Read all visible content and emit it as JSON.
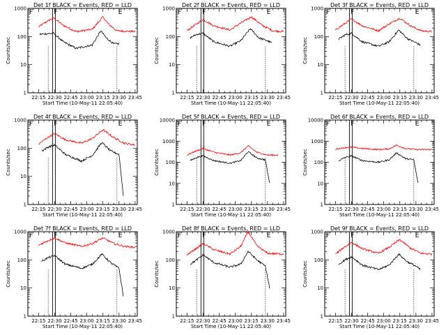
{
  "chart_data": [
    {
      "type": "line",
      "title": "Det 1f BLACK = Events, RED = LLD",
      "xlabel": "Start Time (10-May-11 22:05:40)",
      "ylabel": "Counts/sec",
      "ylim": [
        1,
        1000
      ],
      "yscale": "log",
      "x_ticks": [
        "22:15",
        "22:30",
        "22:45",
        "23:00",
        "23:15",
        "23:30",
        "23:45"
      ],
      "y_ticks": [
        "1",
        "10",
        "100",
        "1000"
      ],
      "markers": [
        "F",
        "E"
      ],
      "series": [
        {
          "color": "#ff0000",
          "x": [
            "22:15",
            "22:22",
            "22:29",
            "22:38",
            "22:50",
            "23:05",
            "23:15",
            "23:20",
            "23:28",
            "23:45"
          ],
          "y": [
            220,
            330,
            460,
            250,
            150,
            180,
            500,
            280,
            160,
            150
          ]
        },
        {
          "color": "#000000",
          "x": [
            "22:16",
            "22:22",
            "22:29",
            "22:38",
            "22:50",
            "23:05",
            "23:13",
            "23:18",
            "23:25",
            "23:30"
          ],
          "y": [
            120,
            125,
            130,
            65,
            38,
            50,
            160,
            90,
            55,
            55
          ]
        }
      ]
    },
    {
      "type": "line",
      "title": "Det 2f BLACK = Events, RED = LLD",
      "xlabel": "Start Time (10-May-11 22:05:40)",
      "ylabel": "Counts/sec",
      "ylim": [
        1,
        1000
      ],
      "yscale": "log",
      "x_ticks": [
        "22:15",
        "22:30",
        "22:45",
        "23:00",
        "23:15",
        "23:30",
        "23:45"
      ],
      "y_ticks": [
        "1",
        "10",
        "100",
        "1000"
      ],
      "markers": [
        "F",
        "E"
      ],
      "series": [
        {
          "color": "#ff0000",
          "x": [
            "22:15",
            "22:22",
            "22:30",
            "22:40",
            "22:55",
            "23:05",
            "23:15",
            "23:25",
            "23:35",
            "23:45"
          ],
          "y": [
            160,
            250,
            400,
            240,
            170,
            300,
            500,
            250,
            160,
            150
          ]
        },
        {
          "color": "#000000",
          "x": [
            "22:18",
            "22:24",
            "22:30",
            "22:40",
            "22:55",
            "23:05",
            "23:14",
            "23:22",
            "23:30",
            "23:34"
          ],
          "y": [
            90,
            120,
            130,
            65,
            45,
            70,
            190,
            90,
            70,
            60
          ]
        }
      ]
    },
    {
      "type": "line",
      "title": "Det 3f BLACK = Events, RED = LLD",
      "xlabel": "Start Time (10-May-11 22:05:40)",
      "ylabel": "Counts/sec",
      "ylim": [
        1,
        1000
      ],
      "yscale": "log",
      "x_ticks": [
        "22:15",
        "22:30",
        "22:45",
        "23:00",
        "23:15",
        "23:30",
        "23:45"
      ],
      "y_ticks": [
        "1",
        "10",
        "100",
        "1000"
      ],
      "markers": [
        "F",
        "E"
      ],
      "series": [
        {
          "color": "#ff0000",
          "x": [
            "22:15",
            "22:22",
            "22:30",
            "22:40",
            "22:55",
            "23:05",
            "23:15",
            "23:25",
            "23:35",
            "23:45"
          ],
          "y": [
            170,
            260,
            420,
            240,
            160,
            280,
            450,
            240,
            160,
            150
          ]
        },
        {
          "color": "#000000",
          "x": [
            "22:18",
            "22:24",
            "22:30",
            "22:40",
            "22:55",
            "23:05",
            "23:14",
            "23:22",
            "23:30",
            "23:34"
          ],
          "y": [
            80,
            115,
            130,
            65,
            45,
            65,
            170,
            85,
            60,
            50
          ]
        }
      ]
    },
    {
      "type": "line",
      "title": "Det 4f BLACK = Events, RED = LLD",
      "xlabel": "Start Time (10-May-11 22:05:40)",
      "ylabel": "Counts/sec",
      "ylim": [
        1,
        1000
      ],
      "yscale": "log",
      "x_ticks": [
        "22:15",
        "22:30",
        "22:45",
        "23:00",
        "23:15",
        "23:30",
        "23:45"
      ],
      "y_ticks": [
        "1",
        "10",
        "100",
        "1000"
      ],
      "markers": [
        "F",
        "E"
      ],
      "series": [
        {
          "color": "#ff0000",
          "x": [
            "22:15",
            "22:22",
            "22:30",
            "22:40",
            "22:55",
            "23:05",
            "23:15",
            "23:25",
            "23:35",
            "23:45"
          ],
          "y": [
            140,
            220,
            330,
            200,
            150,
            220,
            450,
            240,
            150,
            130
          ]
        },
        {
          "color": "#000000",
          "x": [
            "22:18",
            "22:24",
            "22:30",
            "22:40",
            "22:55",
            "23:05",
            "23:14",
            "23:22",
            "23:30",
            "23:34"
          ],
          "y": [
            80,
            110,
            130,
            60,
            35,
            55,
            160,
            80,
            60,
            2
          ]
        }
      ]
    },
    {
      "type": "line",
      "title": "Det 5f BLACK = Events, RED = LLD",
      "xlabel": "Start Time (10-May-11 22:05:40)",
      "ylabel": "Counts/sec",
      "ylim": [
        1,
        10000
      ],
      "yscale": "log",
      "x_ticks": [
        "22:15",
        "22:30",
        "22:45",
        "23:00",
        "23:15",
        "23:30",
        "23:45"
      ],
      "y_ticks": [
        "1",
        "10",
        "100",
        "1000",
        "10000"
      ],
      "markers": [
        "F",
        "E"
      ],
      "series": [
        {
          "color": "#ff0000",
          "x": [
            "22:15",
            "22:22",
            "22:30",
            "22:40",
            "22:55",
            "23:05",
            "23:12",
            "23:20",
            "23:30",
            "23:40"
          ],
          "y": [
            220,
            320,
            450,
            300,
            220,
            280,
            600,
            300,
            220,
            220
          ]
        },
        {
          "color": "#000000",
          "x": [
            "22:18",
            "22:24",
            "22:30",
            "22:40",
            "22:55",
            "23:05",
            "23:12",
            "23:20",
            "23:28",
            "23:32"
          ],
          "y": [
            120,
            170,
            200,
            120,
            90,
            120,
            320,
            160,
            130,
            10
          ]
        }
      ]
    },
    {
      "type": "line",
      "title": "Det 6f BLACK = Events, RED = LLD",
      "xlabel": "Start Time (10-May-11 22:05:40)",
      "ylabel": "Counts/sec",
      "ylim": [
        1,
        10000
      ],
      "yscale": "log",
      "x_ticks": [
        "22:15",
        "22:30",
        "22:45",
        "23:00",
        "23:15",
        "23:30",
        "23:45"
      ],
      "y_ticks": [
        "1",
        "10",
        "100",
        "1000",
        "10000"
      ],
      "markers": [
        "F",
        "E"
      ],
      "series": [
        {
          "color": "#ff0000",
          "x": [
            "22:15",
            "22:22",
            "22:30",
            "22:40",
            "22:55",
            "23:05",
            "23:12",
            "23:20",
            "23:30",
            "23:45"
          ],
          "y": [
            420,
            480,
            520,
            450,
            400,
            430,
            650,
            450,
            400,
            400
          ]
        },
        {
          "color": "#000000",
          "x": [
            "22:18",
            "22:24",
            "22:30",
            "22:40",
            "22:55",
            "23:05",
            "23:12",
            "23:20",
            "23:28",
            "23:32"
          ],
          "y": [
            120,
            170,
            200,
            120,
            100,
            130,
            280,
            150,
            130,
            10
          ]
        }
      ]
    },
    {
      "type": "line",
      "title": "Det 7f BLACK = Events, RED = LLD",
      "xlabel": "Start Time (10-May-11 22:05:40)",
      "ylabel": "Counts/sec",
      "ylim": [
        1,
        1000
      ],
      "yscale": "log",
      "x_ticks": [
        "22:15",
        "22:30",
        "22:45",
        "23:00",
        "23:15",
        "23:30",
        "23:45"
      ],
      "y_ticks": [
        "1",
        "10",
        "100",
        "1000"
      ],
      "markers": [
        "F",
        "E"
      ],
      "series": [
        {
          "color": "#ff0000",
          "x": [
            "22:15",
            "22:22",
            "22:30",
            "22:40",
            "22:55",
            "23:05",
            "23:15",
            "23:25",
            "23:35",
            "23:45"
          ],
          "y": [
            330,
            450,
            600,
            400,
            300,
            380,
            600,
            380,
            300,
            280
          ]
        },
        {
          "color": "#000000",
          "x": [
            "22:18",
            "22:24",
            "22:30",
            "22:40",
            "22:55",
            "23:05",
            "23:14",
            "23:22",
            "23:30",
            "23:34"
          ],
          "y": [
            90,
            120,
            140,
            70,
            50,
            70,
            160,
            80,
            50,
            5
          ]
        }
      ]
    },
    {
      "type": "line",
      "title": "Det 8f BLACK = Events, RED = LLD",
      "xlabel": "Start Time (10-May-11 22:05:40)",
      "ylabel": "Counts/sec",
      "ylim": [
        1,
        1000
      ],
      "yscale": "log",
      "x_ticks": [
        "22:15",
        "22:30",
        "22:45",
        "23:00",
        "23:15",
        "23:30",
        "23:45"
      ],
      "y_ticks": [
        "1",
        "10",
        "100",
        "1000"
      ],
      "markers": [
        "F",
        "E"
      ],
      "series": [
        {
          "color": "#ff0000",
          "x": [
            "22:15",
            "22:22",
            "22:30",
            "22:40",
            "22:55",
            "23:05",
            "23:12",
            "23:20",
            "23:30",
            "23:45"
          ],
          "y": [
            150,
            230,
            380,
            230,
            160,
            300,
            1000,
            320,
            170,
            160
          ]
        },
        {
          "color": "#000000",
          "x": [
            "22:18",
            "22:24",
            "22:30",
            "22:40",
            "22:55",
            "23:05",
            "23:12",
            "23:20",
            "23:28",
            "23:32"
          ],
          "y": [
            70,
            100,
            150,
            80,
            55,
            70,
            200,
            100,
            60,
            10
          ]
        }
      ]
    },
    {
      "type": "line",
      "title": "Det 9f BLACK = Events, RED = LLD",
      "xlabel": "Start Time (10-May-11 22:05:40)",
      "ylabel": "Counts/sec",
      "ylim": [
        1,
        1000
      ],
      "yscale": "log",
      "x_ticks": [
        "22:15",
        "22:30",
        "22:45",
        "23:00",
        "23:15",
        "23:30",
        "23:45"
      ],
      "y_ticks": [
        "1",
        "10",
        "100",
        "1000"
      ],
      "markers": [
        "F",
        "E"
      ],
      "series": [
        {
          "color": "#ff0000",
          "x": [
            "22:15",
            "22:22",
            "22:30",
            "22:40",
            "22:55",
            "23:05",
            "23:15",
            "23:25",
            "23:35",
            "23:45"
          ],
          "y": [
            160,
            260,
            420,
            250,
            170,
            280,
            520,
            260,
            170,
            160
          ]
        },
        {
          "color": "#000000",
          "x": [
            "22:18",
            "22:24",
            "22:30",
            "22:40",
            "22:55",
            "23:05",
            "23:14",
            "23:22",
            "23:30",
            "23:34"
          ],
          "y": [
            70,
            100,
            130,
            65,
            45,
            65,
            160,
            85,
            60,
            45
          ]
        }
      ]
    }
  ]
}
